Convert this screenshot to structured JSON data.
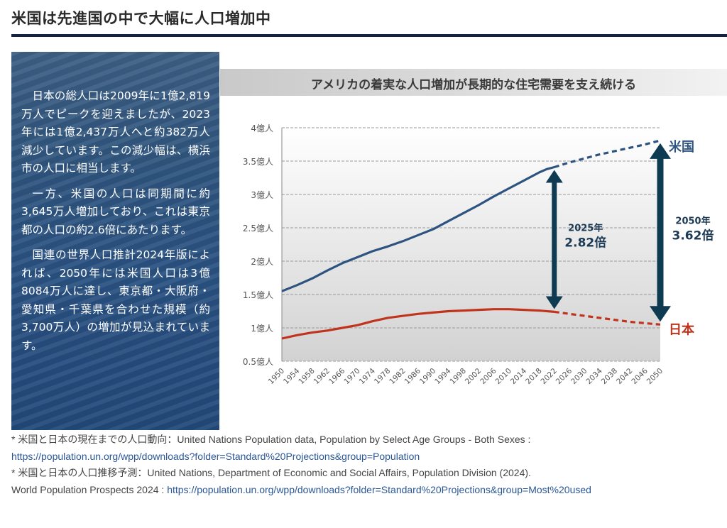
{
  "header": {
    "title": "米国は先進国の中で大幅に人口増加中"
  },
  "side_panel": {
    "paragraphs": [
      "日本の総人口は2009年に1億2,819万人でピークを迎えましたが、2023年には1億2,437万人へと約382万人減少しています。この減少幅は、横浜市の人口に相当します。",
      "一方、米国の人口は同期間に約3,645万人増加しており、これは東京都の人口の約2.6倍にあたります。",
      "国連の世界人口推計2024年版によれば、2050年には米国人口は3億8084万人に達し、東京都・大阪府・愛知県・千葉県を合わせた規模（約3,700万人）の増加が見込まれています。"
    ]
  },
  "chart_data": {
    "type": "line",
    "title": "アメリカの着実な人口増加が長期的な住宅需要を支え続ける",
    "xlabel": "",
    "ylabel": "",
    "y_unit": "億人",
    "ylim": [
      0.5,
      4.0
    ],
    "y_ticks": [
      "0.5億人",
      "1億人",
      "1.5億人",
      "2億人",
      "2.5億人",
      "3億人",
      "3.5億人",
      "4億人"
    ],
    "y_tick_values": [
      0.5,
      1.0,
      1.5,
      2.0,
      2.5,
      3.0,
      3.5,
      4.0
    ],
    "xlim": [
      1950,
      2050
    ],
    "x_ticks": [
      "1950",
      "1954",
      "1958",
      "1962",
      "1966",
      "1970",
      "1974",
      "1978",
      "1982",
      "1986",
      "1990",
      "1994",
      "1998",
      "2002",
      "2006",
      "2010",
      "2014",
      "2018",
      "2022",
      "2026",
      "2030",
      "2034",
      "2038",
      "2042",
      "2046",
      "2050"
    ],
    "grid": true,
    "colors": {
      "usa": "#2d5480",
      "japan": "#c0341d",
      "arrow": "#0e3a52"
    },
    "series": [
      {
        "name": "米国",
        "x": [
          1950,
          1954,
          1958,
          1962,
          1966,
          1970,
          1974,
          1978,
          1982,
          1986,
          1990,
          1994,
          1998,
          2002,
          2006,
          2010,
          2014,
          2018,
          2020,
          2022
        ],
        "values": [
          1.55,
          1.64,
          1.74,
          1.86,
          1.97,
          2.06,
          2.15,
          2.22,
          2.3,
          2.39,
          2.48,
          2.6,
          2.72,
          2.84,
          2.97,
          3.09,
          3.21,
          3.33,
          3.38,
          3.41
        ]
      },
      {
        "name": "米国（予測）",
        "style": "dashed",
        "x": [
          2022,
          2026,
          2030,
          2034,
          2038,
          2042,
          2046,
          2050
        ],
        "values": [
          3.41,
          3.48,
          3.54,
          3.6,
          3.65,
          3.7,
          3.75,
          3.81
        ]
      },
      {
        "name": "日本",
        "x": [
          1950,
          1954,
          1958,
          1962,
          1966,
          1970,
          1974,
          1978,
          1982,
          1986,
          1990,
          1994,
          1998,
          2002,
          2006,
          2010,
          2014,
          2018,
          2022
        ],
        "values": [
          0.84,
          0.89,
          0.93,
          0.96,
          1.0,
          1.04,
          1.1,
          1.15,
          1.18,
          1.21,
          1.23,
          1.25,
          1.26,
          1.27,
          1.28,
          1.28,
          1.27,
          1.26,
          1.24
        ]
      },
      {
        "name": "日本（予測）",
        "style": "dashed",
        "x": [
          2022,
          2026,
          2030,
          2034,
          2038,
          2042,
          2046,
          2050
        ],
        "values": [
          1.24,
          1.21,
          1.18,
          1.15,
          1.12,
          1.09,
          1.07,
          1.05
        ]
      }
    ],
    "series_labels": [
      {
        "text": "米国",
        "series": "usa"
      },
      {
        "text": "日本",
        "series": "japan"
      }
    ],
    "annotations": [
      {
        "year_label": "2025年",
        "ratio_label": "2.82倍",
        "x": 2022,
        "from": 1.24,
        "to": 3.41
      },
      {
        "year_label": "2050年",
        "ratio_label": "3.62倍",
        "x": 2050,
        "from": 1.05,
        "to": 3.81
      }
    ]
  },
  "footnotes": [
    {
      "prefix": "* 米国と日本の現在までの人口動向：United Nations Population data, Population by Select Age Groups - Both Sexes :",
      "link": ""
    },
    {
      "prefix": "",
      "link": "https://population.un.org/wpp/downloads?folder=Standard%20Projections&group=Population"
    },
    {
      "prefix": "* 米国と日本の人口推移予測：United Nations, Department of Economic and Social Affairs, Population Division (2024).",
      "link": ""
    },
    {
      "prefix": "World Population Prospects 2024 : ",
      "link": "https://population.un.org/wpp/downloads?folder=Standard%20Projections&group=Most%20used"
    }
  ]
}
